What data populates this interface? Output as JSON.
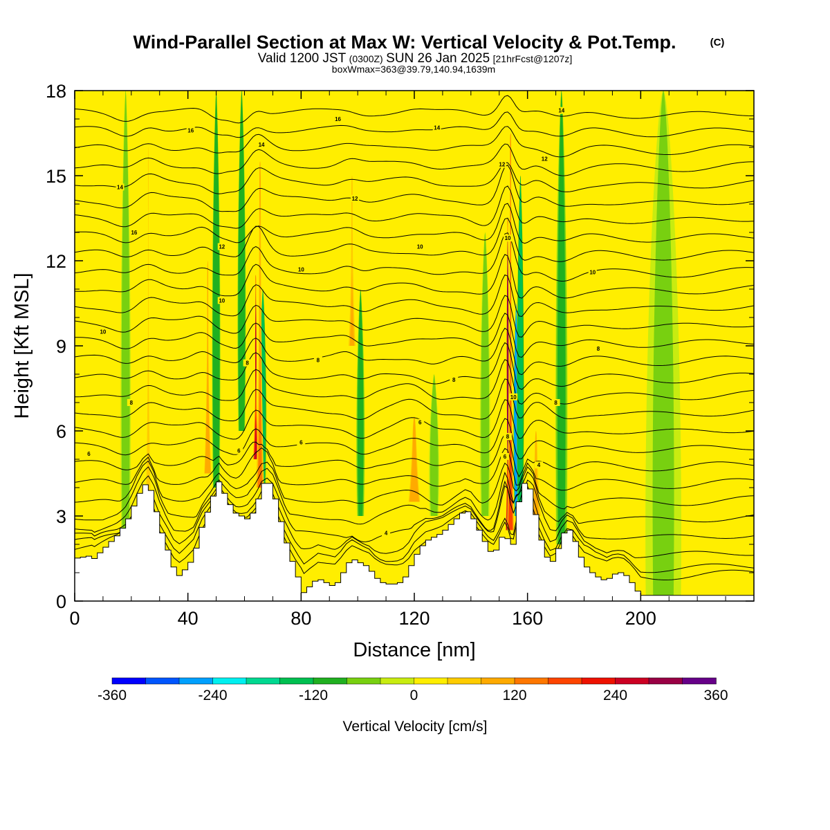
{
  "chart_data": {
    "type": "heatmap",
    "title": "Wind-Parallel Section at Max W: Vertical Velocity & Pot.Temp.",
    "copyright_mark": "(C)",
    "subtitle_parts": {
      "valid": "Valid 1200 JST",
      "utc": "(0300Z)",
      "date": "SUN 26 Jan 2025",
      "forecast": "[21hrFcst@1207z]"
    },
    "box_info": "boxWmax=363@39.79,140.94,1639m",
    "xlabel": "Distance [nm]",
    "ylabel": "Height [Kft MSL]",
    "xlim": [
      0,
      240
    ],
    "ylim": [
      0,
      18
    ],
    "x_ticks": [
      0,
      40,
      80,
      120,
      160,
      200
    ],
    "y_ticks": [
      0,
      3,
      6,
      9,
      12,
      15,
      18
    ],
    "colorbar": {
      "label": "Vertical Velocity [cm/s]",
      "range": [
        -360,
        360
      ],
      "tick_values": [
        -360,
        -240,
        -120,
        0,
        120,
        240,
        360
      ],
      "tick_labels": [
        "-360",
        "-240",
        "-120",
        "0",
        "120",
        "240",
        "360"
      ],
      "colors": [
        "#0000ff",
        "#0055ff",
        "#00a0ff",
        "#00f0f0",
        "#00d890",
        "#00c050",
        "#20b020",
        "#78d010",
        "#c8ec10",
        "#ffee00",
        "#ffcc00",
        "#ffaa00",
        "#ff7700",
        "#ff4400",
        "#ee1100",
        "#cc0022",
        "#990044",
        "#660088"
      ]
    },
    "background_value": 10,
    "updraft_bands": [
      {
        "x": 26,
        "w": 1.6,
        "v": 70,
        "y0": 3,
        "y1": 16
      },
      {
        "x": 47,
        "w": 1.8,
        "v": 110,
        "y0": 4.5,
        "y1": 12
      },
      {
        "x": 64,
        "w": 1.2,
        "v": 250,
        "y0": 5,
        "y1": 11.5
      },
      {
        "x": 65.5,
        "w": 1.8,
        "v": 130,
        "y0": 4,
        "y1": 15.5
      },
      {
        "x": 98,
        "w": 1.8,
        "v": 80,
        "y0": 9,
        "y1": 15
      },
      {
        "x": 120,
        "w": 3,
        "v": 110,
        "y0": 3.5,
        "y1": 6.5
      },
      {
        "x": 153,
        "w": 0.9,
        "v": 300,
        "y0": 2.5,
        "y1": 13.5
      },
      {
        "x": 154,
        "w": 1.6,
        "v": 190,
        "y0": 2.5,
        "y1": 16.5
      },
      {
        "x": 163,
        "w": 2.5,
        "v": 100,
        "y0": 3,
        "y1": 6
      }
    ],
    "downdraft_bands": [
      {
        "x": 18,
        "w": 2,
        "v": -70,
        "y0": 2,
        "y1": 18
      },
      {
        "x": 50,
        "w": 1.6,
        "v": -110,
        "y0": 4,
        "y1": 18
      },
      {
        "x": 59,
        "w": 1.6,
        "v": -110,
        "y0": 6,
        "y1": 18
      },
      {
        "x": 66.5,
        "w": 1.2,
        "v": -130,
        "y0": 4,
        "y1": 11
      },
      {
        "x": 101,
        "w": 1.6,
        "v": -90,
        "y0": 3,
        "y1": 11
      },
      {
        "x": 127,
        "w": 2,
        "v": -70,
        "y0": 3,
        "y1": 8
      },
      {
        "x": 145,
        "w": 2,
        "v": -70,
        "y0": 3,
        "y1": 13
      },
      {
        "x": 156,
        "w": 0.7,
        "v": -250,
        "y0": 3,
        "y1": 10.5
      },
      {
        "x": 157.5,
        "w": 1.2,
        "v": -150,
        "y0": 3,
        "y1": 15
      },
      {
        "x": 172,
        "w": 2.5,
        "v": -90,
        "y0": 2,
        "y1": 18
      },
      {
        "x": 208,
        "w": 8,
        "v": -45,
        "y0": 0,
        "y1": 18
      }
    ],
    "terrain": {
      "x": [
        0,
        6,
        7,
        15,
        18,
        20,
        22,
        24,
        26,
        28,
        30,
        33,
        35,
        37,
        39,
        42,
        45,
        48,
        50,
        51,
        53,
        55,
        57,
        59,
        61,
        63,
        64,
        65,
        66,
        68,
        70,
        72,
        74,
        76,
        78,
        80,
        81,
        82,
        84,
        86,
        88,
        90,
        92,
        94,
        96,
        98,
        100,
        102,
        104,
        106,
        108,
        110,
        112,
        114,
        116,
        118,
        120,
        122,
        124,
        126,
        128,
        130,
        132,
        134,
        136,
        138,
        140,
        142,
        144,
        146,
        148,
        150,
        152,
        153,
        154,
        155,
        156,
        158,
        160,
        162,
        164,
        166,
        168,
        170,
        172,
        174,
        176,
        178,
        180,
        182,
        184,
        186,
        188,
        190,
        192,
        194,
        196,
        198,
        200,
        202,
        240
      ],
      "y": [
        1.5,
        1.6,
        1.5,
        2.3,
        2.7,
        3.1,
        3.6,
        4.0,
        4.2,
        3.6,
        2.7,
        1.8,
        1.2,
        0.9,
        1.1,
        1.5,
        2.6,
        3.4,
        4.0,
        4.2,
        3.8,
        3.4,
        3.1,
        3.0,
        2.9,
        3.1,
        3.3,
        3.6,
        4.0,
        4.3,
        4.0,
        3.2,
        2.4,
        1.7,
        1.1,
        0.6,
        0.3,
        0.4,
        0.6,
        0.8,
        0.7,
        0.6,
        0.5,
        0.8,
        1.2,
        1.5,
        1.4,
        1.3,
        1.2,
        0.9,
        0.7,
        0.6,
        0.6,
        0.6,
        0.7,
        1.0,
        1.5,
        1.8,
        2.1,
        2.2,
        2.3,
        2.4,
        2.6,
        2.8,
        3.0,
        3.2,
        3.1,
        2.7,
        2.3,
        1.9,
        1.6,
        2.0,
        2.5,
        2.2,
        1.8,
        2.0,
        3.0,
        4.0,
        4.3,
        3.6,
        2.5,
        1.8,
        1.3,
        1.5,
        2.2,
        2.6,
        2.4,
        1.8,
        1.3,
        1.1,
        0.9,
        0.8,
        0.7,
        0.9,
        1.0,
        1.0,
        0.8,
        0.5,
        0.2,
        0.2,
        0.2
      ]
    },
    "contour_labels": [
      {
        "x": 5,
        "y": 5.2,
        "text": "6"
      },
      {
        "x": 20,
        "y": 7.0,
        "text": "8"
      },
      {
        "x": 10,
        "y": 9.5,
        "text": "10"
      },
      {
        "x": 21,
        "y": 13.0,
        "text": "16"
      },
      {
        "x": 16,
        "y": 14.6,
        "text": "14"
      },
      {
        "x": 41,
        "y": 16.6,
        "text": "16"
      },
      {
        "x": 52,
        "y": 10.6,
        "text": "10"
      },
      {
        "x": 52,
        "y": 12.5,
        "text": "12"
      },
      {
        "x": 61,
        "y": 8.4,
        "text": "8"
      },
      {
        "x": 58,
        "y": 5.3,
        "text": "6"
      },
      {
        "x": 66,
        "y": 16.1,
        "text": "14"
      },
      {
        "x": 80,
        "y": 5.6,
        "text": "6"
      },
      {
        "x": 80,
        "y": 11.7,
        "text": "10"
      },
      {
        "x": 86,
        "y": 8.5,
        "text": "8"
      },
      {
        "x": 110,
        "y": 2.4,
        "text": "4"
      },
      {
        "x": 99,
        "y": 14.2,
        "text": "12"
      },
      {
        "x": 93,
        "y": 17.0,
        "text": "16"
      },
      {
        "x": 122,
        "y": 6.3,
        "text": "6"
      },
      {
        "x": 122,
        "y": 12.5,
        "text": "10"
      },
      {
        "x": 128,
        "y": 16.7,
        "text": "14"
      },
      {
        "x": 134,
        "y": 7.8,
        "text": "8"
      },
      {
        "x": 152,
        "y": 5.1,
        "text": "6"
      },
      {
        "x": 153,
        "y": 5.8,
        "text": "8"
      },
      {
        "x": 155,
        "y": 7.2,
        "text": "10"
      },
      {
        "x": 153,
        "y": 12.8,
        "text": "10"
      },
      {
        "x": 151,
        "y": 15.4,
        "text": "12"
      },
      {
        "x": 164,
        "y": 4.8,
        "text": "4"
      },
      {
        "x": 170,
        "y": 7.0,
        "text": "8"
      },
      {
        "x": 185,
        "y": 8.9,
        "text": "8"
      },
      {
        "x": 183,
        "y": 11.6,
        "text": "10"
      },
      {
        "x": 166,
        "y": 15.6,
        "text": "12"
      },
      {
        "x": 172,
        "y": 17.3,
        "text": "14"
      }
    ]
  }
}
